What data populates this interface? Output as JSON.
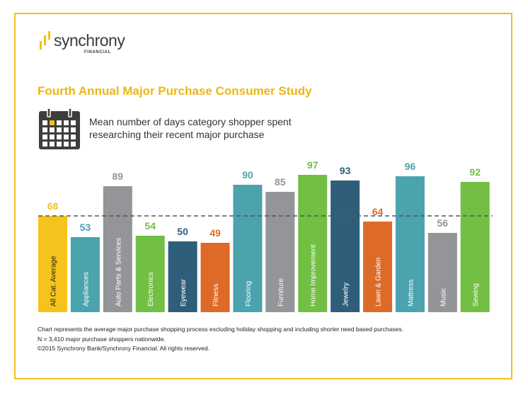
{
  "logo": {
    "name": "synchrony",
    "tagline": "FINANCIAL"
  },
  "study_title": "Fourth Annual Major Purchase Consumer Study",
  "icon": "calendar-icon",
  "subtitle_lines": [
    "Mean number of days category shopper spent",
    "researching their recent major purchase"
  ],
  "colors": {
    "brand_yellow": "#f5bf1a",
    "title_yellow": "#f0b510",
    "teal": "#4ba3ad",
    "gray": "#939598",
    "green": "#72bf44",
    "navy": "#2f5e7b",
    "orange": "#dd6b27",
    "average_line": "#555555"
  },
  "chart_data": {
    "type": "bar",
    "categories": [
      "All Cat. Average",
      "Appliances",
      "Auto Parts & Services",
      "Electronics",
      "Eyewear",
      "Fitness",
      "Flooring",
      "Furniture",
      "Home Improvement",
      "Jewelry",
      "Lawn & Garden",
      "Mattress",
      "Music",
      "Sewing"
    ],
    "values": [
      68,
      53,
      89,
      54,
      50,
      49,
      90,
      85,
      97,
      93,
      64,
      96,
      56,
      92
    ],
    "bar_colors": [
      "#f5c31b",
      "#4ba3ad",
      "#939598",
      "#72bf44",
      "#2f5e7b",
      "#dd6b27",
      "#4ba3ad",
      "#939598",
      "#72bf44",
      "#2f5e7b",
      "#dd6b27",
      "#4ba3ad",
      "#939598",
      "#72bf44"
    ],
    "reference_line": {
      "value": 68,
      "style": "dashed"
    },
    "title": "",
    "xlabel": "",
    "ylabel": "",
    "ylim": [
      0,
      100
    ],
    "grid": false,
    "legend": "none",
    "data_labels": true
  },
  "footnotes": [
    "Chart represents the average major purchase shopping process excluding holiday shopping and including shorter need based purchases.",
    "N = 3,410 major purchase shoppers nationwide.",
    "©2015 Synchrony Bank/Synchrony Financial. All rights reserved."
  ]
}
